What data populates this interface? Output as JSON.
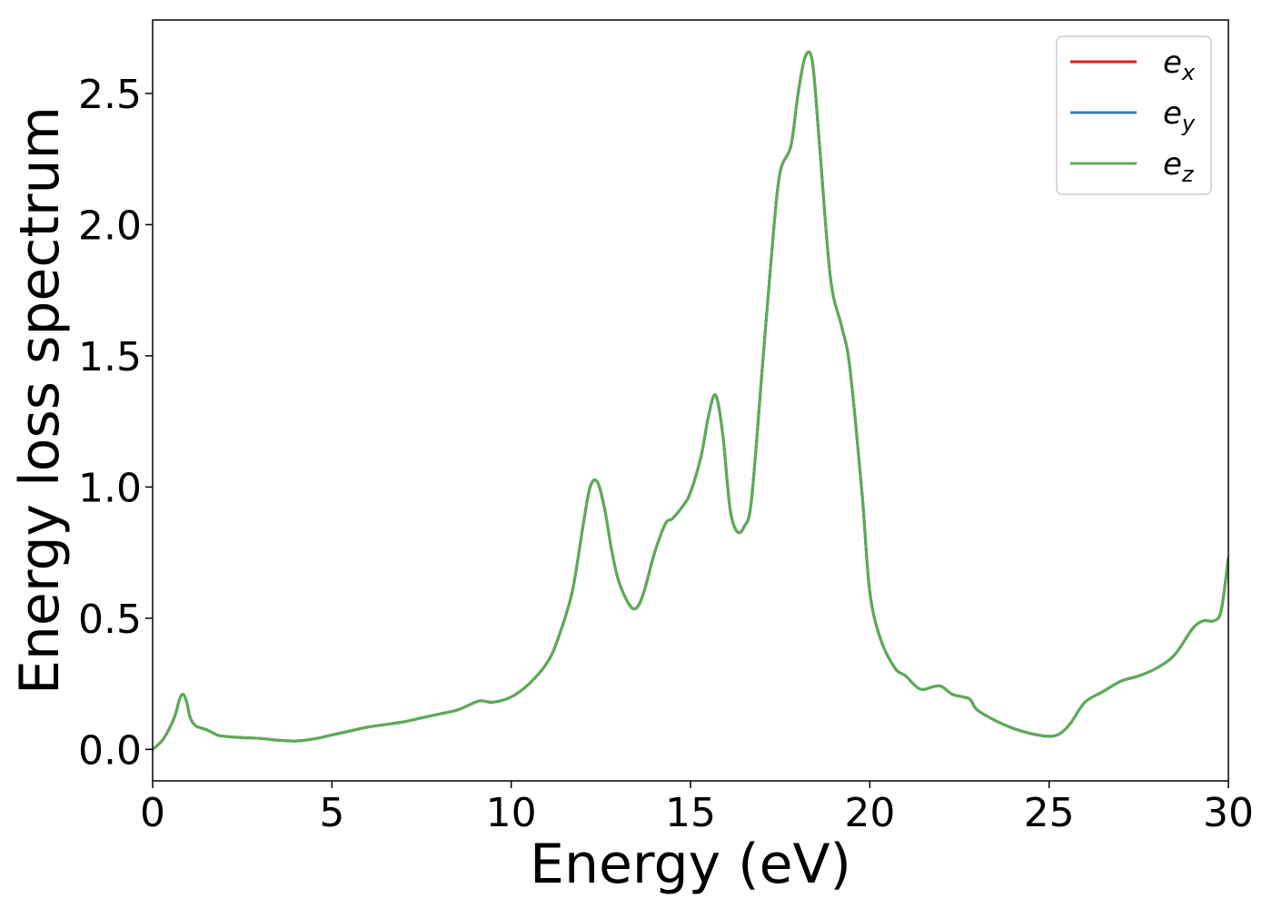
{
  "chart_data": {
    "type": "line",
    "xlabel": "Energy (eV)",
    "ylabel": "Energy loss spectrum",
    "xlim": [
      0,
      30
    ],
    "ylim": [
      -0.12,
      2.78
    ],
    "xticks": [
      0,
      5,
      10,
      15,
      20,
      25,
      30
    ],
    "xtick_labels": [
      "0",
      "5",
      "10",
      "15",
      "20",
      "25",
      "30"
    ],
    "yticks": [
      0.0,
      0.5,
      1.0,
      1.5,
      2.0,
      2.5
    ],
    "ytick_labels": [
      "0.0",
      "0.5",
      "1.0",
      "1.5",
      "2.0",
      "2.5"
    ],
    "grid": false,
    "legend_position": "top-right",
    "x": [
      0,
      0.3,
      0.6,
      0.75,
      0.85,
      0.95,
      1.05,
      1.2,
      1.5,
      1.8,
      2.0,
      2.5,
      3.0,
      3.5,
      4.0,
      4.5,
      5.0,
      5.5,
      6.0,
      6.5,
      7.0,
      7.5,
      8.0,
      8.5,
      9.0,
      9.2,
      9.5,
      10.0,
      10.5,
      11.0,
      11.3,
      11.7,
      12.0,
      12.2,
      12.4,
      12.6,
      12.8,
      13.0,
      13.3,
      13.5,
      13.7,
      14.0,
      14.3,
      14.5,
      14.8,
      15.0,
      15.3,
      15.5,
      15.7,
      15.9,
      16.1,
      16.3,
      16.5,
      16.7,
      17.0,
      17.3,
      17.5,
      17.8,
      18.0,
      18.2,
      18.4,
      18.6,
      18.9,
      19.2,
      19.4,
      19.6,
      19.8,
      20.0,
      20.3,
      20.7,
      21.0,
      21.4,
      21.8,
      22.0,
      22.3,
      22.6,
      22.8,
      23.0,
      23.5,
      24.0,
      24.5,
      25.0,
      25.3,
      25.6,
      26.0,
      26.5,
      27.0,
      27.5,
      28.0,
      28.5,
      29.0,
      29.3,
      29.6,
      29.8,
      30.0
    ],
    "series": [
      {
        "name": "e_x",
        "label_base": "e",
        "label_sub": "x",
        "color": "#e41a1c",
        "y": [
          0.0,
          0.04,
          0.12,
          0.19,
          0.21,
          0.18,
          0.12,
          0.09,
          0.075,
          0.055,
          0.05,
          0.045,
          0.042,
          0.035,
          0.032,
          0.04,
          0.055,
          0.07,
          0.085,
          0.095,
          0.105,
          0.12,
          0.135,
          0.15,
          0.18,
          0.185,
          0.18,
          0.2,
          0.25,
          0.33,
          0.42,
          0.6,
          0.85,
          1.0,
          1.02,
          0.92,
          0.76,
          0.64,
          0.55,
          0.54,
          0.6,
          0.75,
          0.86,
          0.88,
          0.93,
          0.98,
          1.12,
          1.27,
          1.35,
          1.2,
          0.92,
          0.83,
          0.85,
          0.95,
          1.45,
          1.95,
          2.2,
          2.3,
          2.5,
          2.64,
          2.62,
          2.3,
          1.8,
          1.62,
          1.5,
          1.25,
          0.95,
          0.6,
          0.42,
          0.31,
          0.28,
          0.23,
          0.24,
          0.24,
          0.21,
          0.2,
          0.19,
          0.15,
          0.11,
          0.08,
          0.06,
          0.05,
          0.06,
          0.1,
          0.18,
          0.22,
          0.26,
          0.28,
          0.31,
          0.36,
          0.46,
          0.49,
          0.49,
          0.53,
          0.73
        ]
      },
      {
        "name": "e_y",
        "label_base": "e",
        "label_sub": "y",
        "color": "#377eb8",
        "y": [
          0.0,
          0.04,
          0.12,
          0.19,
          0.21,
          0.18,
          0.12,
          0.09,
          0.075,
          0.055,
          0.05,
          0.045,
          0.042,
          0.035,
          0.032,
          0.04,
          0.055,
          0.07,
          0.085,
          0.095,
          0.105,
          0.12,
          0.135,
          0.15,
          0.18,
          0.185,
          0.18,
          0.2,
          0.25,
          0.33,
          0.42,
          0.6,
          0.85,
          1.0,
          1.02,
          0.92,
          0.76,
          0.64,
          0.55,
          0.54,
          0.6,
          0.75,
          0.86,
          0.88,
          0.93,
          0.98,
          1.12,
          1.27,
          1.35,
          1.2,
          0.92,
          0.83,
          0.85,
          0.95,
          1.45,
          1.95,
          2.2,
          2.3,
          2.5,
          2.64,
          2.62,
          2.3,
          1.8,
          1.62,
          1.5,
          1.25,
          0.95,
          0.6,
          0.42,
          0.31,
          0.28,
          0.23,
          0.24,
          0.24,
          0.21,
          0.2,
          0.19,
          0.15,
          0.11,
          0.08,
          0.06,
          0.05,
          0.06,
          0.1,
          0.18,
          0.22,
          0.26,
          0.28,
          0.31,
          0.36,
          0.46,
          0.49,
          0.49,
          0.53,
          0.73
        ]
      },
      {
        "name": "e_z",
        "label_base": "e",
        "label_sub": "z",
        "color": "#5aad52",
        "y": [
          0.0,
          0.04,
          0.12,
          0.19,
          0.21,
          0.18,
          0.12,
          0.09,
          0.075,
          0.055,
          0.05,
          0.045,
          0.042,
          0.035,
          0.032,
          0.04,
          0.055,
          0.07,
          0.085,
          0.095,
          0.105,
          0.12,
          0.135,
          0.15,
          0.18,
          0.185,
          0.18,
          0.2,
          0.25,
          0.33,
          0.42,
          0.6,
          0.85,
          1.0,
          1.02,
          0.92,
          0.76,
          0.64,
          0.55,
          0.54,
          0.6,
          0.75,
          0.86,
          0.88,
          0.93,
          0.98,
          1.12,
          1.27,
          1.35,
          1.2,
          0.92,
          0.83,
          0.85,
          0.95,
          1.45,
          1.95,
          2.2,
          2.3,
          2.5,
          2.64,
          2.62,
          2.3,
          1.8,
          1.62,
          1.5,
          1.25,
          0.95,
          0.6,
          0.42,
          0.31,
          0.28,
          0.23,
          0.24,
          0.24,
          0.21,
          0.2,
          0.19,
          0.15,
          0.11,
          0.08,
          0.06,
          0.05,
          0.06,
          0.1,
          0.18,
          0.22,
          0.26,
          0.28,
          0.31,
          0.36,
          0.46,
          0.49,
          0.49,
          0.53,
          0.73
        ]
      }
    ]
  }
}
